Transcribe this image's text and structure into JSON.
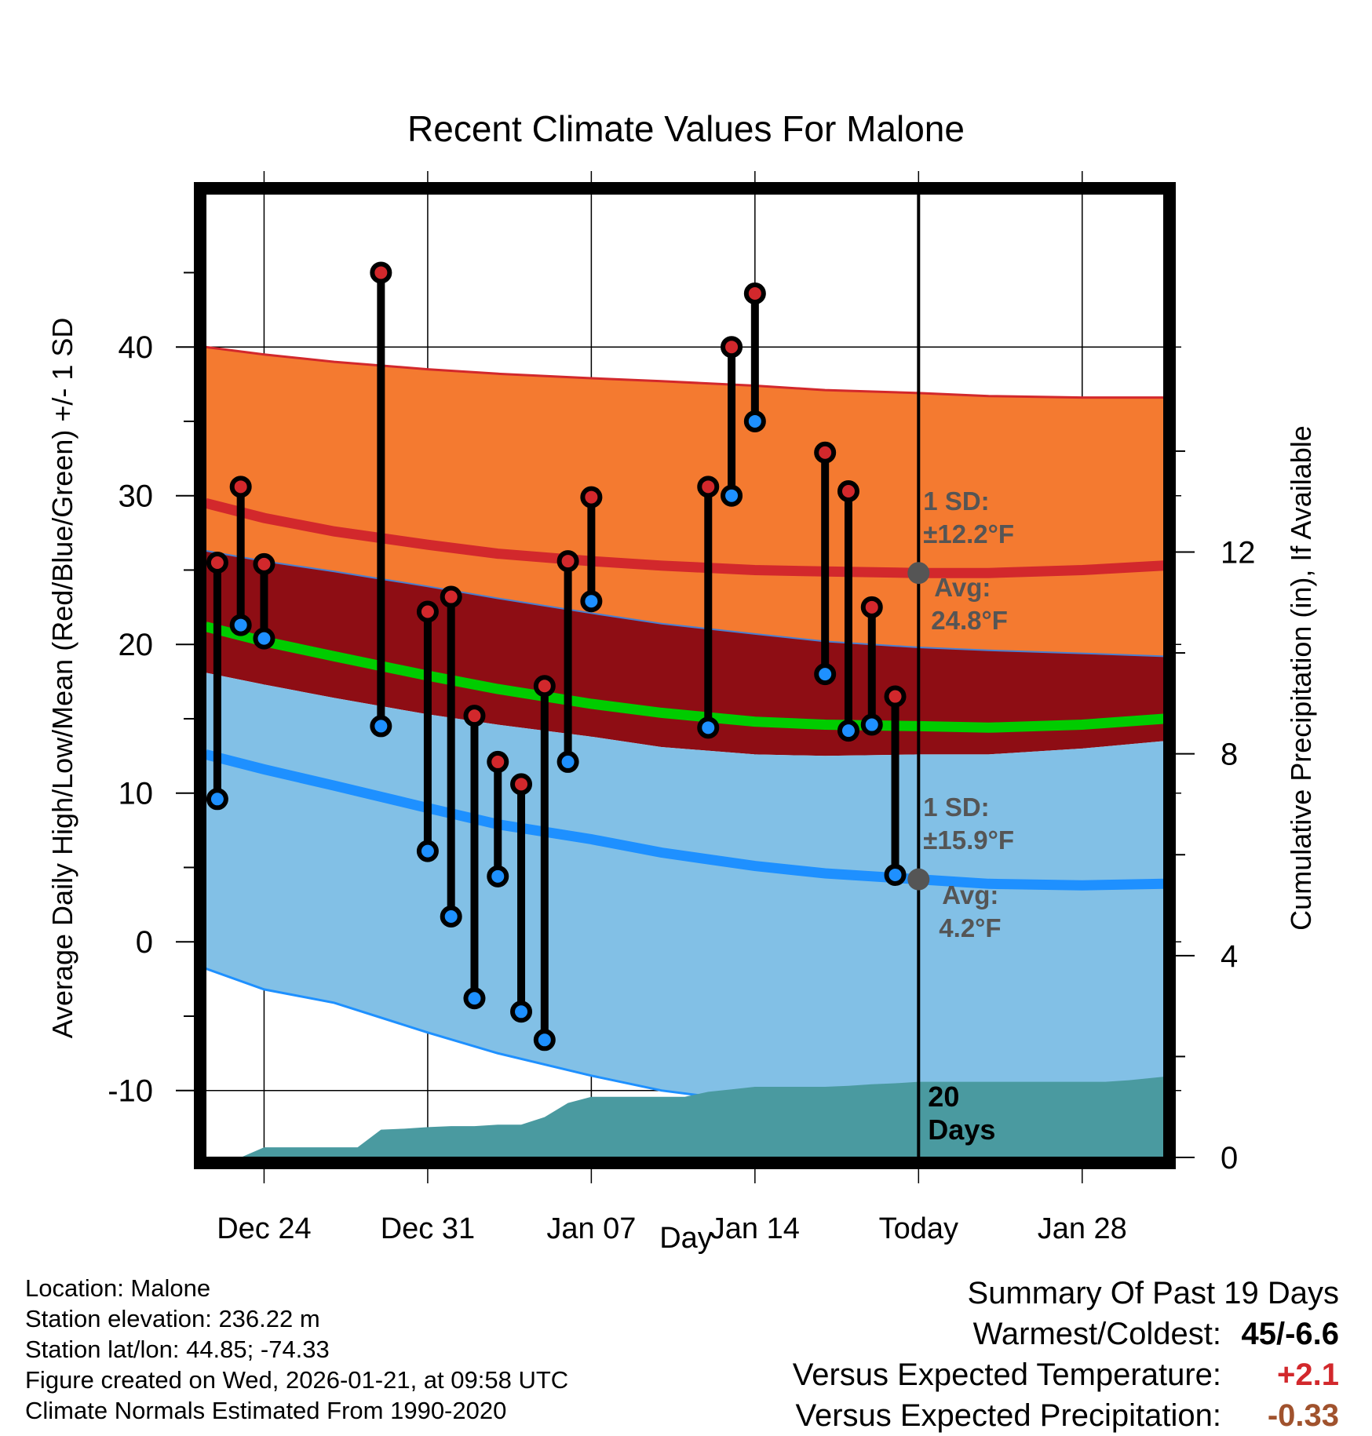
{
  "colors": {
    "upper_band": "#f47a30",
    "upper_band_edge": "#d2282c",
    "high_line": "#d2282c",
    "mean_band": "#8e0d14",
    "mean_line": "#00cc00",
    "lower_band": "#82c0e6",
    "lower_band_edge": "#1e90ff",
    "low_line": "#1e90ff",
    "precip_fill": "#4a9aa0",
    "high_marker": "#d2282c",
    "low_marker": "#1e90ff",
    "avg_marker": "#555555",
    "annotation_text": "#555555",
    "positive_anomaly": "#d2282c",
    "precip_anomaly": "#a0522d"
  },
  "chart_data": {
    "type": "line",
    "title": "Recent Climate Values For Malone",
    "xlabel": "Day",
    "ylabel": "Average Daily High/Low/Mean (Red/Blue/Green) +/- 1 SD",
    "y2label": "Cumulative Precipitation (in), If Available",
    "xlim": [
      -2.5,
      38.5
    ],
    "ylim": [
      -14.5,
      50.3
    ],
    "y2lim": [
      0,
      19.1
    ],
    "x_ticks": [
      {
        "x": 0,
        "label": "Dec 24"
      },
      {
        "x": 7,
        "label": "Dec 31"
      },
      {
        "x": 14,
        "label": "Jan 07"
      },
      {
        "x": 21,
        "label": "Jan 14"
      },
      {
        "x": 28,
        "label": "Today"
      },
      {
        "x": 35,
        "label": "Jan 28"
      }
    ],
    "y_ticks": [
      -10,
      0,
      10,
      20,
      30,
      40
    ],
    "y2_ticks": [
      0,
      4,
      8,
      12
    ],
    "grid": true,
    "today_x": 28,
    "normals": {
      "x": [
        -2.5,
        0,
        3,
        7,
        10,
        14,
        17,
        21,
        24,
        28,
        31,
        35,
        38.5
      ],
      "high_plus_sd": [
        40.0,
        39.5,
        39.0,
        38.5,
        38.2,
        37.9,
        37.7,
        37.4,
        37.1,
        36.9,
        36.7,
        36.6,
        36.6
      ],
      "high": [
        29.5,
        28.5,
        27.6,
        26.7,
        26.1,
        25.6,
        25.3,
        25.0,
        24.9,
        24.8,
        24.8,
        25.0,
        25.3
      ],
      "mean_plus": [
        26.3,
        25.6,
        24.9,
        23.9,
        23.1,
        22.1,
        21.4,
        20.7,
        20.2,
        19.8,
        19.6,
        19.4,
        19.2
      ],
      "mean": [
        21.2,
        20.2,
        19.2,
        17.9,
        17.0,
        16.0,
        15.4,
        14.8,
        14.6,
        14.5,
        14.4,
        14.6,
        15.0
      ],
      "mean_minus": [
        18.1,
        17.3,
        16.4,
        15.3,
        14.6,
        13.8,
        13.1,
        12.6,
        12.5,
        12.6,
        12.6,
        13.0,
        13.5
      ],
      "low": [
        12.6,
        11.6,
        10.5,
        9.0,
        7.9,
        6.9,
        6.0,
        5.1,
        4.6,
        4.2,
        3.9,
        3.8,
        3.9
      ],
      "low_minus_sd": [
        -1.8,
        -3.2,
        -4.1,
        -6.1,
        -7.5,
        -9.0,
        -10.0,
        -10.8,
        -11.5,
        -11.7,
        -11.8,
        -11.5,
        -10.5
      ]
    },
    "series": [
      {
        "name": "Daily High",
        "x": [
          -2,
          -1,
          0,
          5,
          7,
          8,
          9,
          10,
          11,
          12,
          13,
          14,
          19,
          20,
          21,
          24,
          25,
          26,
          27
        ],
        "values": [
          25.5,
          30.6,
          25.4,
          45.0,
          22.2,
          23.2,
          15.2,
          12.1,
          10.6,
          17.2,
          25.6,
          29.9,
          30.6,
          40.0,
          43.6,
          32.9,
          30.3,
          22.5,
          16.5
        ]
      },
      {
        "name": "Daily Low",
        "x": [
          -2,
          -1,
          0,
          5,
          7,
          8,
          9,
          10,
          11,
          12,
          13,
          14,
          19,
          20,
          21,
          24,
          25,
          26,
          27
        ],
        "values": [
          9.6,
          21.3,
          20.4,
          14.5,
          6.1,
          1.7,
          -3.8,
          4.4,
          -4.7,
          -6.6,
          12.1,
          22.9,
          14.4,
          30.0,
          35.0,
          18.0,
          14.2,
          14.6,
          4.5
        ]
      },
      {
        "name": "Cumulative Precipitation",
        "axis": "y2",
        "x": [
          -2.5,
          -1,
          0,
          1,
          2,
          3,
          4,
          5,
          6,
          7,
          8,
          9,
          10,
          11,
          12,
          13,
          14,
          15,
          16,
          17,
          18,
          19,
          20,
          21,
          22,
          23,
          24,
          25,
          26,
          27,
          28,
          29,
          30,
          31,
          32,
          33,
          34,
          35,
          36,
          37,
          38.5
        ],
        "values": [
          0,
          0,
          0.2,
          0.2,
          0.2,
          0.2,
          0.2,
          0.55,
          0.57,
          0.6,
          0.62,
          0.62,
          0.65,
          0.65,
          0.8,
          1.08,
          1.2,
          1.2,
          1.2,
          1.2,
          1.2,
          1.3,
          1.35,
          1.4,
          1.4,
          1.4,
          1.4,
          1.42,
          1.45,
          1.47,
          1.5,
          1.5,
          1.5,
          1.5,
          1.5,
          1.5,
          1.5,
          1.5,
          1.5,
          1.53,
          1.6
        ]
      }
    ],
    "annotations": {
      "high": {
        "sd_label": "1 SD:",
        "sd_value": "±12.2°F",
        "avg_label": "Avg:",
        "avg_value": "24.8°F",
        "avg": 24.8
      },
      "low": {
        "sd_label": "1 SD:",
        "sd_value": "±15.9°F",
        "avg_label": "Avg:",
        "avg_value": "4.2°F",
        "avg": 4.2
      },
      "days": "20\nDays"
    }
  },
  "footer": {
    "location": "Location: Malone",
    "elevation": "Station elevation: 236.22 m",
    "latlon": "Station lat/lon: 44.85; -74.33",
    "created": "Figure created on Wed, 2026-01-21, at 09:58 UTC",
    "normals": "Climate Normals Estimated From 1990-2020"
  },
  "summary": {
    "title": "Summary Of Past 19 Days",
    "warmest_coldest_label": "Warmest/Coldest:",
    "warmest_coldest_value": "45/-6.6",
    "temp_label": "Versus Expected Temperature:",
    "temp_value": "+2.1",
    "precip_label": "Versus Expected Precipitation:",
    "precip_value": "-0.33"
  }
}
